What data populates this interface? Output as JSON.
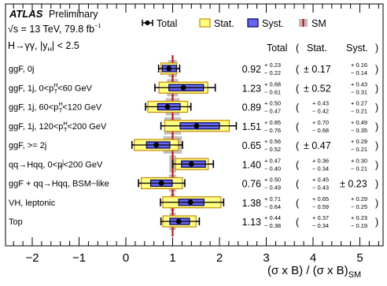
{
  "chart_data": {
    "type": "errorbar",
    "experiment": "ATLAS",
    "status": "Preliminary",
    "energy_line": "√s = 13 TeV, 79.8 fb",
    "energy_sup": "−1",
    "channel_line": "H→γγ, |y",
    "channel_sub": "H",
    "channel_end": "| < 2.5",
    "legend": [
      {
        "name": "Total",
        "kind": "error-bar",
        "color": "#000000"
      },
      {
        "name": "Stat.",
        "kind": "box",
        "color": "#ffff80",
        "edge": "#cc8800"
      },
      {
        "name": "Syst.",
        "kind": "box",
        "color": "#6666ee",
        "edge": "#000066"
      },
      {
        "name": "SM",
        "kind": "band",
        "color": "#cc0000",
        "band_color": "#bbbbbb"
      }
    ],
    "table_headers": {
      "total": "Total",
      "stat": "Stat.",
      "syst": "Syst.",
      "open": "(",
      "close": ")"
    },
    "xlabel": "(σ x B) / (σ x B)",
    "xlabel_sub": "SM",
    "xlim": [
      -2.5,
      5.8
    ],
    "xticks": [
      "−2",
      "−1",
      "0",
      "1",
      "2",
      "3",
      "4",
      "5"
    ],
    "xtick_values": [
      -2,
      -1,
      0,
      1,
      2,
      3,
      4,
      5
    ],
    "sm_value": 1.0,
    "categories": [
      {
        "label": "ggF, 0j",
        "value": 0.92,
        "value_text": "0.92",
        "tot_up": 0.23,
        "tot_dn": 0.22,
        "tot_up_text": "+ 0.23",
        "tot_dn_text": "− 0.22",
        "stat_sym": true,
        "stat_text": "± 0.17",
        "stat_up": 0.17,
        "stat_dn": 0.17,
        "syst_sym": false,
        "syst_up": 0.16,
        "syst_dn": 0.14,
        "syst_up_text": "+ 0.16",
        "syst_dn_text": "− 0.14",
        "sm_unc": 0.09
      },
      {
        "label": "ggF, 1j, 0<p",
        "label_sup": "H",
        "label_sub": "T",
        "label_end": "<60 GeV",
        "value": 1.23,
        "value_text": "1.23",
        "tot_up": 0.68,
        "tot_dn": 0.61,
        "tot_up_text": "+ 0.68",
        "tot_dn_text": "− 0.61",
        "stat_sym": true,
        "stat_text": "± 0.52",
        "stat_up": 0.52,
        "stat_dn": 0.52,
        "syst_sym": false,
        "syst_up": 0.43,
        "syst_dn": 0.31,
        "syst_up_text": "+ 0.43",
        "syst_dn_text": "− 0.31",
        "sm_unc": 0.12
      },
      {
        "label": "ggF, 1j, 60<p",
        "label_sup": "H",
        "label_sub": "T",
        "label_end": "<120 GeV",
        "value": 0.89,
        "value_text": "0.89",
        "tot_up": 0.5,
        "tot_dn": 0.47,
        "tot_up_text": "+ 0.50",
        "tot_dn_text": "− 0.47",
        "stat_sym": false,
        "stat_up": 0.43,
        "stat_dn": 0.42,
        "stat_up_text": "+ 0.43",
        "stat_dn_text": "− 0.42",
        "syst_sym": false,
        "syst_up": 0.27,
        "syst_dn": 0.21,
        "syst_up_text": "+ 0.27",
        "syst_dn_text": "− 0.21",
        "sm_unc": 0.15
      },
      {
        "label": "ggF, 1j, 120<p",
        "label_sup": "H",
        "label_sub": "T",
        "label_end": "<200 GeV",
        "value": 1.51,
        "value_text": "1.51",
        "tot_up": 0.85,
        "tot_dn": 0.76,
        "tot_up_text": "+ 0.85",
        "tot_dn_text": "− 0.76",
        "stat_sym": false,
        "stat_up": 0.7,
        "stat_dn": 0.68,
        "stat_up_text": "+ 0.70",
        "stat_dn_text": "− 0.68",
        "syst_sym": false,
        "syst_up": 0.49,
        "syst_dn": 0.35,
        "syst_up_text": "+ 0.49",
        "syst_dn_text": "− 0.35",
        "sm_unc": 0.18
      },
      {
        "label": "ggF, >= 2j",
        "value": 0.65,
        "value_text": "0.65",
        "tot_up": 0.56,
        "tot_dn": 0.52,
        "tot_up_text": "+ 0.56",
        "tot_dn_text": "− 0.52",
        "stat_sym": true,
        "stat_text": "± 0.47",
        "stat_up": 0.47,
        "stat_dn": 0.47,
        "syst_sym": false,
        "syst_up": 0.29,
        "syst_dn": 0.21,
        "syst_up_text": "+ 0.29",
        "syst_dn_text": "− 0.21",
        "sm_unc": 0.2
      },
      {
        "label": "qq→Hqq, 0<p",
        "label_sup": "j",
        "label_sub": "T",
        "label_end": "<200 GeV",
        "value": 1.4,
        "value_text": "1.40",
        "tot_up": 0.47,
        "tot_dn": 0.4,
        "tot_up_text": "+ 0.47",
        "tot_dn_text": "− 0.40",
        "stat_sym": false,
        "stat_up": 0.36,
        "stat_dn": 0.34,
        "stat_up_text": "+ 0.36",
        "stat_dn_text": "− 0.34",
        "syst_sym": false,
        "syst_up": 0.3,
        "syst_dn": 0.21,
        "syst_up_text": "+ 0.30",
        "syst_dn_text": "− 0.21",
        "sm_unc": 0.07
      },
      {
        "label": "ggF + qq→Hqq, BSM−like",
        "value": 0.76,
        "value_text": "0.76",
        "tot_up": 0.5,
        "tot_dn": 0.49,
        "tot_up_text": "+ 0.50",
        "tot_dn_text": "− 0.49",
        "stat_sym": false,
        "stat_up": 0.45,
        "stat_dn": 0.43,
        "stat_up_text": "+ 0.45",
        "stat_dn_text": "− 0.43",
        "syst_sym": true,
        "syst_text": "± 0.23",
        "syst_up": 0.23,
        "syst_dn": 0.23,
        "sm_unc": 0.08
      },
      {
        "label": "VH, leptonic",
        "value": 1.38,
        "value_text": "1.38",
        "tot_up": 0.71,
        "tot_dn": 0.64,
        "tot_up_text": "+ 0.71",
        "tot_dn_text": "− 0.64",
        "stat_sym": false,
        "stat_up": 0.65,
        "stat_dn": 0.59,
        "stat_up_text": "+ 0.65",
        "stat_dn_text": "− 0.59",
        "syst_sym": false,
        "syst_up": 0.29,
        "syst_dn": 0.25,
        "syst_up_text": "+ 0.29",
        "syst_dn_text": "− 0.25",
        "sm_unc": 0.05
      },
      {
        "label": "Top",
        "value": 1.13,
        "value_text": "1.13",
        "tot_up": 0.44,
        "tot_dn": 0.38,
        "tot_up_text": "+ 0.44",
        "tot_dn_text": "− 0.38",
        "stat_sym": false,
        "stat_up": 0.37,
        "stat_dn": 0.34,
        "stat_up_text": "+ 0.37",
        "stat_dn_text": "− 0.34",
        "syst_sym": false,
        "syst_up": 0.23,
        "syst_dn": 0.19,
        "syst_up_text": "+ 0.23",
        "syst_dn_text": "− 0.19",
        "sm_unc": 0.07
      }
    ]
  }
}
